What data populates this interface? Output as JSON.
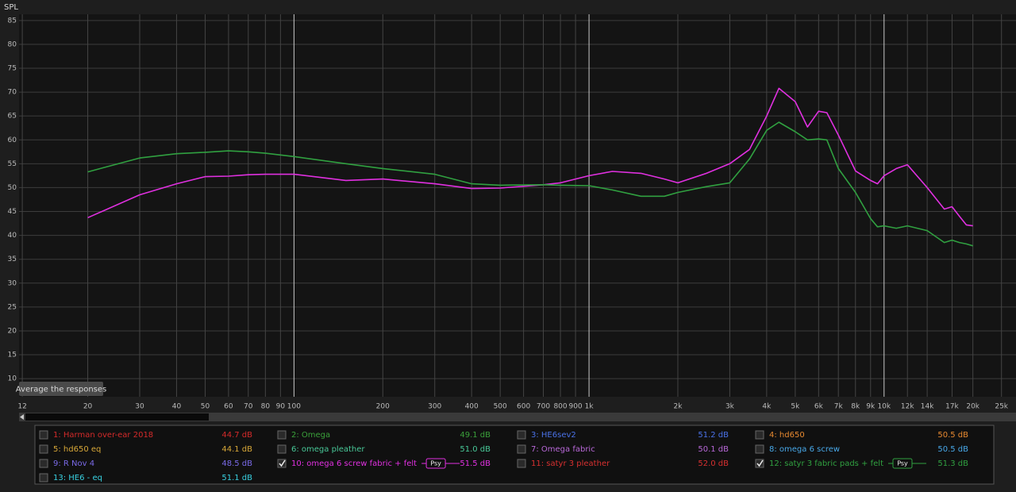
{
  "chart_data": {
    "type": "line",
    "ylabel": "SPL",
    "button": "Average the responses",
    "xscale": "log",
    "grid": true,
    "xlim": [
      11.7,
      28000
    ],
    "ylim": [
      6.2,
      86.3
    ],
    "yticks": [
      10,
      15,
      20,
      25,
      30,
      35,
      40,
      45,
      50,
      55,
      60,
      65,
      70,
      75,
      80,
      85
    ],
    "xticks": [
      12,
      20,
      30,
      40,
      50,
      60,
      70,
      80,
      90,
      100,
      200,
      300,
      400,
      500,
      600,
      700,
      800,
      900,
      {
        "value": 1000,
        "label": "1k"
      },
      {
        "value": 2000,
        "label": "2k"
      },
      {
        "value": 3000,
        "label": "3k"
      },
      {
        "value": 4000,
        "label": "4k"
      },
      {
        "value": 5000,
        "label": "5k"
      },
      {
        "value": 6000,
        "label": "6k"
      },
      {
        "value": 7000,
        "label": "7k"
      },
      {
        "value": 8000,
        "label": "8k"
      },
      {
        "value": 9000,
        "label": "9k"
      },
      {
        "value": 10000,
        "label": "10k"
      },
      {
        "value": 12000,
        "label": "12k"
      },
      {
        "value": 14000,
        "label": "14k"
      },
      {
        "value": 17000,
        "label": "17k"
      },
      {
        "value": 20000,
        "label": "20k"
      },
      {
        "value": 25000,
        "label": "25k"
      }
    ],
    "x": [
      20,
      30,
      40,
      50,
      60,
      70,
      80,
      100,
      150,
      200,
      300,
      400,
      500,
      700,
      800,
      1000,
      1200,
      1500,
      1800,
      2000,
      2500,
      3000,
      3500,
      4000,
      4400,
      5000,
      5500,
      6000,
      6400,
      7000,
      8000,
      9000,
      9500,
      10000,
      11000,
      12000,
      14000,
      16000,
      17000,
      18000,
      19000,
      20000
    ],
    "series": [
      {
        "name": "1: Harman over-ear 2018",
        "color": "#d42a2a",
        "reading": "44.7 dB",
        "checked": false
      },
      {
        "name": "2: Omega",
        "color": "#3aa03a",
        "reading": "49.1 dB",
        "checked": false
      },
      {
        "name": "3: HE6sev2",
        "color": "#4a72e8",
        "reading": "51.2 dB",
        "checked": false
      },
      {
        "name": "4: hd650",
        "color": "#e88a30",
        "reading": "50.5 dB",
        "checked": false
      },
      {
        "name": "5: hd650 eq",
        "color": "#d8a838",
        "reading": "44.1 dB",
        "checked": false
      },
      {
        "name": "6: omega pleather",
        "color": "#48c898",
        "reading": "51.0 dB",
        "checked": false
      },
      {
        "name": "7: Omega fabric",
        "color": "#b868d8",
        "reading": "50.1 dB",
        "checked": false
      },
      {
        "name": "8: omega 6 screw",
        "color": "#48a8e8",
        "reading": "50.5 dB",
        "checked": false
      },
      {
        "name": "9: R Nov 4",
        "color": "#7a6ae8",
        "reading": "48.5 dB",
        "checked": false
      },
      {
        "name": "10: omega 6 screw fabric + felt",
        "color": "#e030e0",
        "reading": "51.5 dB",
        "checked": true,
        "tag": "Psy",
        "values": [
          43.7,
          48.5,
          50.8,
          52.3,
          52.4,
          52.7,
          52.8,
          52.8,
          51.5,
          51.8,
          50.8,
          49.8,
          49.9,
          50.6,
          51,
          52.5,
          53.4,
          53,
          51.8,
          51,
          53,
          55,
          58,
          65,
          70.8,
          68,
          62.7,
          66,
          65.7,
          61,
          53.5,
          51.5,
          50.8,
          52.5,
          54,
          54.8,
          50,
          45.5,
          46,
          44,
          42.2,
          42
        ]
      },
      {
        "name": "11: satyr 3 pleather",
        "color": "#d83030",
        "reading": "52.0 dB",
        "checked": false
      },
      {
        "name": "12: satyr 3 fabric pads + felt",
        "color": "#30a040",
        "reading": "51.3 dB",
        "checked": true,
        "tag": "Psy",
        "values": [
          53.3,
          56.2,
          57.1,
          57.4,
          57.7,
          57.5,
          57.2,
          56.5,
          55,
          54,
          52.8,
          50.8,
          50.5,
          50.6,
          50.5,
          50.4,
          49.5,
          48.2,
          48.2,
          49,
          50.2,
          51,
          56,
          62,
          63.7,
          61.7,
          60,
          60.2,
          60,
          54,
          49,
          43.5,
          41.8,
          42,
          41.5,
          42,
          41,
          38.5,
          39,
          38.5,
          38.2,
          37.8
        ]
      },
      {
        "name": "13: HE6 - eq",
        "color": "#38d0e0",
        "reading": "51.1 dB",
        "checked": false
      }
    ]
  }
}
